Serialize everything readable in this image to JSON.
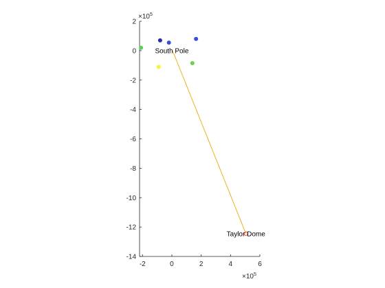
{
  "chart_data": {
    "type": "scatter",
    "title": "",
    "xlabel": "",
    "ylabel": "",
    "xlim": [
      -2.2,
      6
    ],
    "ylim": [
      -14,
      2
    ],
    "x_ticks": [
      -2,
      0,
      2,
      4,
      6
    ],
    "y_ticks": [
      2,
      0,
      -2,
      -4,
      -6,
      -8,
      -10,
      -12,
      -14
    ],
    "x_tick_labels": [
      "-2",
      "0",
      "2",
      "4",
      "6"
    ],
    "y_tick_labels": [
      "2",
      "0",
      "-2",
      "-4",
      "-6",
      "-8",
      "-10",
      "-12",
      "-14"
    ],
    "x_exponent": {
      "base": "×10",
      "power": "5"
    },
    "y_exponent": {
      "base": "×10",
      "power": "5"
    },
    "grid": false,
    "box": false,
    "points": [
      {
        "x": -2.1,
        "y": 0.2,
        "color": "#5fcf5f"
      },
      {
        "x": -0.8,
        "y": 0.7,
        "color": "#2a2aa8"
      },
      {
        "x": -0.2,
        "y": 0.55,
        "color": "#3b4fd6"
      },
      {
        "x": 1.65,
        "y": 0.8,
        "color": "#3b4fd6"
      },
      {
        "x": 1.4,
        "y": -0.85,
        "color": "#6fcf4f"
      },
      {
        "x": -0.9,
        "y": -1.1,
        "color": "#f5f53a"
      }
    ],
    "line": {
      "from": [
        0.05,
        0.0
      ],
      "to": [
        5.05,
        -12.45
      ],
      "color": "#edb120"
    },
    "annotations": [
      {
        "text": "South Pole",
        "x": 0.0,
        "y": 0.0,
        "marker": false
      },
      {
        "text": "Taylor Dome",
        "x": 5.05,
        "y": -12.45,
        "marker": true,
        "marker_color": "#ff3b3b"
      }
    ]
  }
}
